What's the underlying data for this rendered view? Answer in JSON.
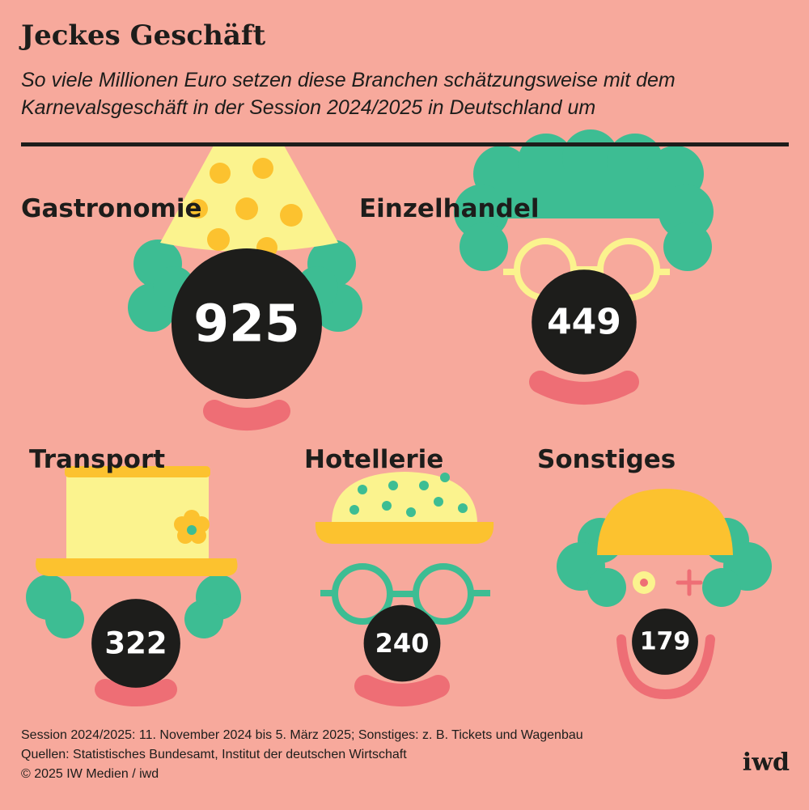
{
  "header": {
    "title": "Jeckes Geschäft",
    "subtitle": "So viele Millionen Euro setzen diese Branchen schätzungsweise mit dem Karnevalsgeschäft in der Session 2024/2025 in Deutschland um"
  },
  "chart_data": {
    "type": "bubble",
    "unit": "Millionen Euro",
    "categories": [
      "Gastronomie",
      "Einzelhandel",
      "Transport",
      "Hotellerie",
      "Sonstiges"
    ],
    "values": [
      925,
      449,
      322,
      240,
      179
    ],
    "value_labels": [
      "925",
      "449",
      "322",
      "240",
      "179"
    ]
  },
  "colors": {
    "background": "#f7a99c",
    "nose": "#1d1d1b",
    "hair": "#3dbd93",
    "hat_light": "#fbf38e",
    "hat_dark": "#fcc22f",
    "mouth": "#ee6e75"
  },
  "footer": {
    "note": "Session 2024/2025: 11. November 2024 bis 5. März 2025; Sonstiges: z. B. Tickets und Wagenbau",
    "sources": "Quellen: Statistisches Bundesamt, Institut der deutschen Wirtschaft",
    "copyright": "© 2025 IW Medien / iwd"
  },
  "logo": "iwd"
}
